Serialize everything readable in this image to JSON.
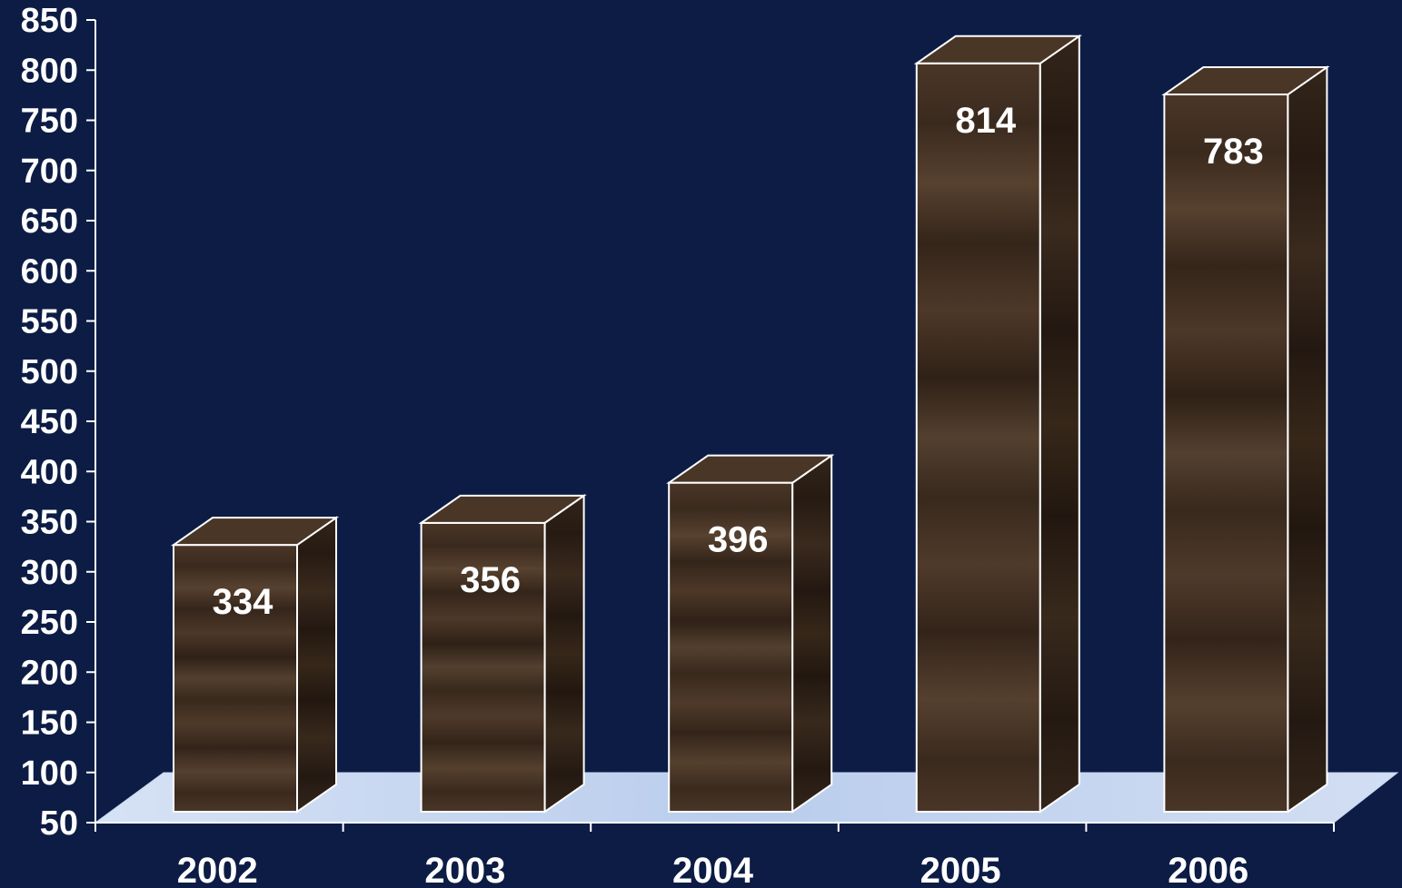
{
  "colors": {
    "background": "#0c1c45",
    "bar_front": "#3b2a1f",
    "bar_side": "#2c1e15",
    "bar_top": "#4a3626",
    "floor": "#c9d8f0",
    "text": "#ffffff"
  },
  "chart_data": {
    "type": "bar",
    "title": "",
    "xlabel": "",
    "ylabel": "",
    "categories": [
      "2002",
      "2003",
      "2004",
      "2005",
      "2006"
    ],
    "values": [
      334,
      356,
      396,
      814,
      783
    ],
    "data_labels": [
      "334",
      "356",
      "396",
      "814",
      "783"
    ],
    "yticks": [
      "50",
      "100",
      "150",
      "200",
      "250",
      "300",
      "350",
      "400",
      "450",
      "500",
      "550",
      "600",
      "650",
      "700",
      "750",
      "800",
      "850"
    ],
    "ylim": [
      50,
      850
    ],
    "grid": false,
    "legend": "none",
    "style": "3d-column-wood-texture"
  }
}
